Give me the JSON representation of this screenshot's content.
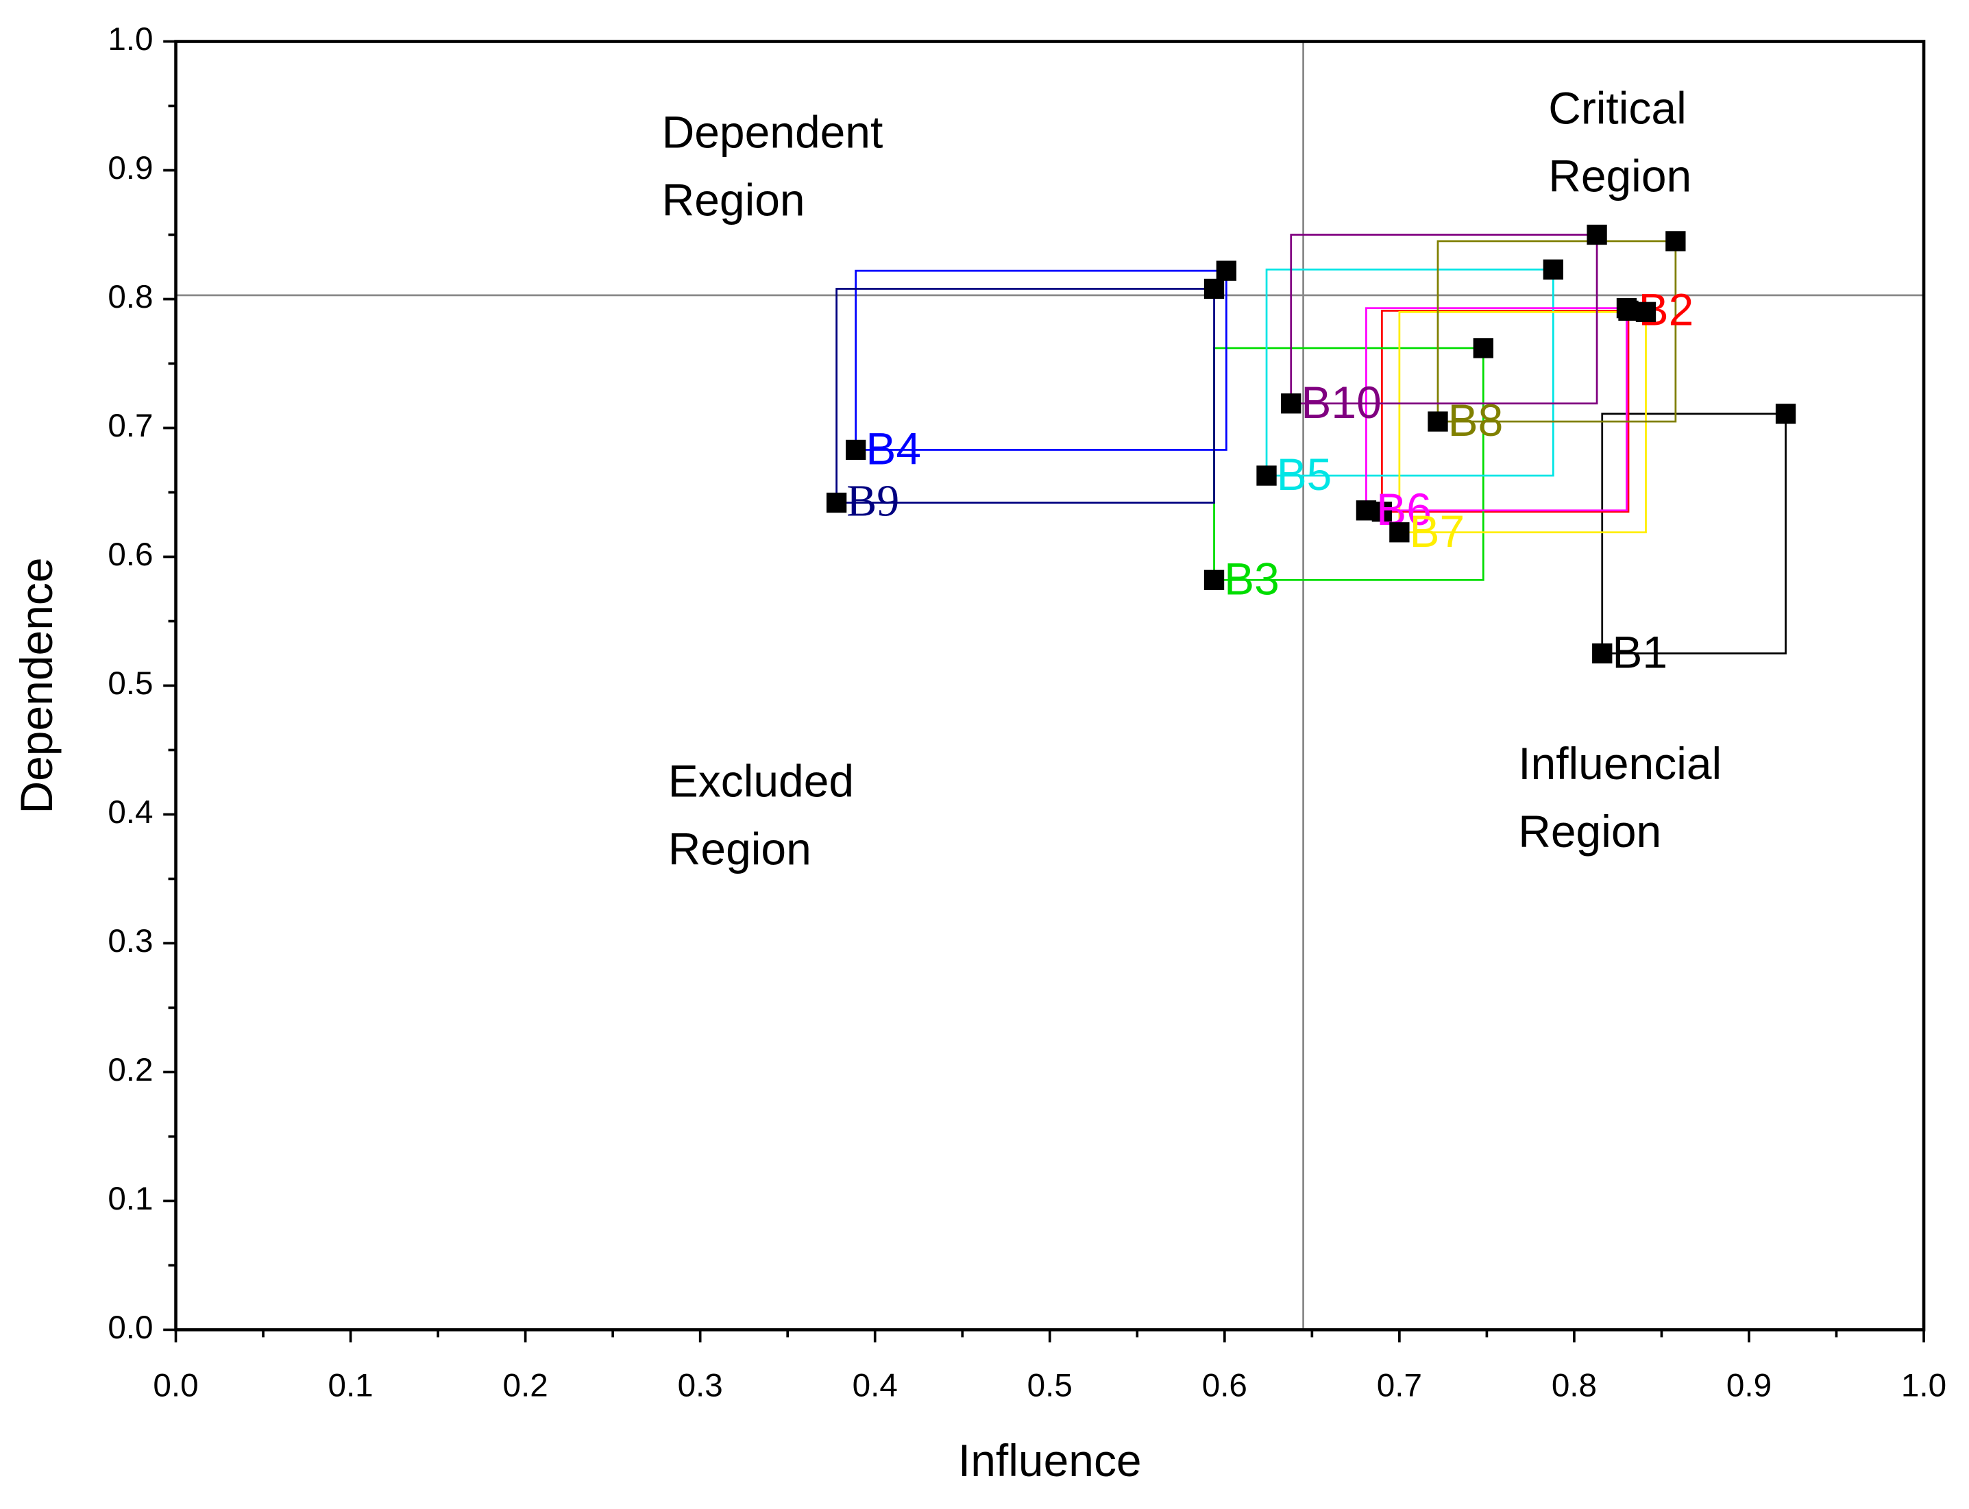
{
  "chart_data": {
    "type": "scatter",
    "xlabel": "Influence",
    "ylabel": "Dependence",
    "xlim": [
      0,
      1
    ],
    "ylim": [
      0,
      1
    ],
    "xticks": [
      {
        "value": 0,
        "label": "0.0"
      },
      0.1,
      0.2,
      0.3,
      0.4,
      0.5,
      0.6,
      0.7,
      0.8,
      0.9,
      {
        "value": 1,
        "label": "1.0"
      }
    ],
    "yticks": [
      {
        "value": 0,
        "label": "0.0"
      },
      0.1,
      0.2,
      0.3,
      0.4,
      0.5,
      0.6,
      0.7,
      0.8,
      0.9,
      {
        "value": 1,
        "label": "1.0"
      }
    ],
    "reference_lines": {
      "x": 0.645,
      "y": 0.803
    },
    "annotations": [
      [
        "Dependent",
        "Region"
      ],
      [
        "Critical",
        "Region"
      ],
      [
        "Excluded",
        "Region"
      ],
      [
        "Influencial",
        "Region"
      ]
    ],
    "marker_color": "#000000",
    "series": [
      {
        "name": "B1",
        "color": "#000000",
        "x": [
          0.816,
          0.921
        ],
        "values": [
          0.525,
          0.711
        ]
      },
      {
        "name": "B2",
        "color": "#ff0000",
        "x": [
          0.831,
          0.69
        ],
        "values": [
          0.791,
          0.635
        ]
      },
      {
        "name": "B3",
        "color": "#00dd00",
        "x": [
          0.594,
          0.748
        ],
        "values": [
          0.582,
          0.762
        ]
      },
      {
        "name": "B4",
        "color": "#0000ff",
        "x": [
          0.389,
          0.601
        ],
        "values": [
          0.683,
          0.822
        ]
      },
      {
        "name": "B5",
        "color": "#00e5e5",
        "x": [
          0.624,
          0.788
        ],
        "values": [
          0.663,
          0.823
        ]
      },
      {
        "name": "B6",
        "color": "#ff00ff",
        "x": [
          0.681,
          0.83
        ],
        "values": [
          0.636,
          0.793
        ]
      },
      {
        "name": "B7",
        "color": "#ffee00",
        "x": [
          0.7,
          0.841
        ],
        "values": [
          0.619,
          0.79
        ]
      },
      {
        "name": "B8",
        "color": "#808000",
        "x": [
          0.722,
          0.858
        ],
        "values": [
          0.705,
          0.845
        ]
      },
      {
        "name": "B9",
        "color": "#000080",
        "x": [
          0.378,
          0.594
        ],
        "values": [
          0.642,
          0.808
        ]
      },
      {
        "name": "B10",
        "color": "#800080",
        "x": [
          0.638,
          0.813
        ],
        "values": [
          0.719,
          0.85
        ]
      }
    ]
  }
}
